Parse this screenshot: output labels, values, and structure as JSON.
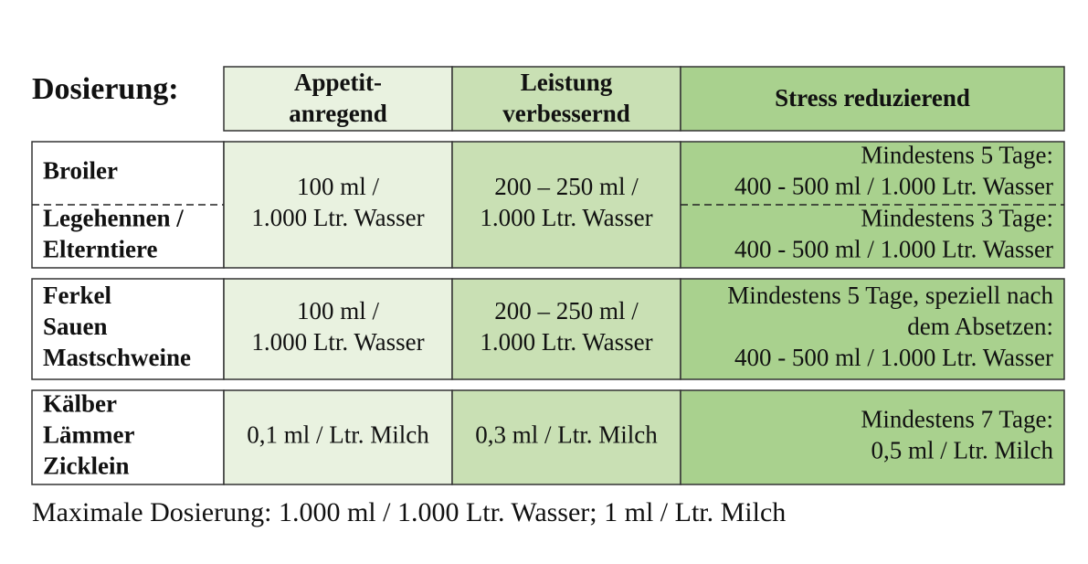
{
  "title": "Dosierung:",
  "header": [
    [
      "Appetit-",
      "anregend"
    ],
    [
      "Leistung",
      "verbessernd"
    ],
    [
      "Stress reduzierend"
    ]
  ],
  "groups": [
    {
      "labels": [
        [
          "Broiler"
        ],
        [
          "Legehennen /",
          "Elterntiere"
        ]
      ],
      "appetit": [
        "100 ml /",
        "1.000 Ltr. Wasser"
      ],
      "leistung": [
        "200 – 250 ml /",
        "1.000 Ltr. Wasser"
      ],
      "stress": [
        [
          "Mindestens 5 Tage:",
          "400 - 500 ml / 1.000 Ltr. Wasser"
        ],
        [
          "Mindestens 3 Tage:",
          "400 - 500 ml / 1.000 Ltr. Wasser"
        ]
      ]
    },
    {
      "labels": [
        [
          "Ferkel",
          "Sauen",
          "Mastschweine"
        ]
      ],
      "appetit": [
        "100 ml /",
        "1.000 Ltr. Wasser"
      ],
      "leistung": [
        "200 – 250 ml /",
        "1.000 Ltr. Wasser"
      ],
      "stress": [
        [
          "Mindestens 5 Tage, speziell nach",
          "dem Absetzen:",
          "400 - 500 ml / 1.000 Ltr. Wasser"
        ]
      ]
    },
    {
      "labels": [
        [
          "Kälber",
          "Lämmer",
          "Zicklein"
        ]
      ],
      "appetit": [
        "0,1 ml / Ltr. Milch"
      ],
      "leistung": [
        "0,3 ml / Ltr. Milch"
      ],
      "stress": [
        [
          "Mindestens 7 Tage:",
          "0,5 ml / Ltr. Milch"
        ]
      ]
    }
  ],
  "footer": "Maximale Dosierung: 1.000 ml / 1.000 Ltr. Wasser; 1 ml / Ltr. Milch"
}
